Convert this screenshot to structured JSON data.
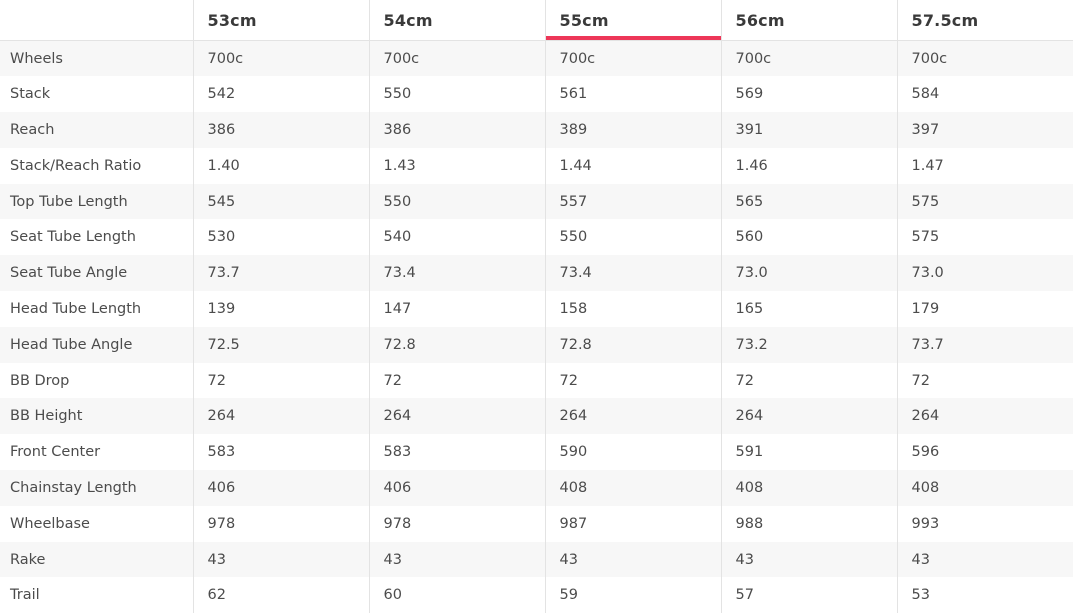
{
  "table": {
    "corner_label": "",
    "columns": [
      "53cm",
      "54cm",
      "55cm",
      "56cm",
      "57.5cm"
    ],
    "active_column_index": 2,
    "rows": [
      {
        "label": "Wheels",
        "values": [
          "700c",
          "700c",
          "700c",
          "700c",
          "700c"
        ]
      },
      {
        "label": "Stack",
        "values": [
          "542",
          "550",
          "561",
          "569",
          "584"
        ]
      },
      {
        "label": "Reach",
        "values": [
          "386",
          "386",
          "389",
          "391",
          "397"
        ]
      },
      {
        "label": "Stack/Reach Ratio",
        "values": [
          "1.40",
          "1.43",
          "1.44",
          "1.46",
          "1.47"
        ]
      },
      {
        "label": "Top Tube Length",
        "values": [
          "545",
          "550",
          "557",
          "565",
          "575"
        ]
      },
      {
        "label": "Seat Tube Length",
        "values": [
          "530",
          "540",
          "550",
          "560",
          "575"
        ]
      },
      {
        "label": "Seat Tube Angle",
        "values": [
          "73.7",
          "73.4",
          "73.4",
          "73.0",
          "73.0"
        ]
      },
      {
        "label": "Head Tube Length",
        "values": [
          "139",
          "147",
          "158",
          "165",
          "179"
        ]
      },
      {
        "label": "Head Tube Angle",
        "values": [
          "72.5",
          "72.8",
          "72.8",
          "73.2",
          "73.7"
        ]
      },
      {
        "label": "BB Drop",
        "values": [
          "72",
          "72",
          "72",
          "72",
          "72"
        ]
      },
      {
        "label": "BB Height",
        "values": [
          "264",
          "264",
          "264",
          "264",
          "264"
        ]
      },
      {
        "label": "Front Center",
        "values": [
          "583",
          "583",
          "590",
          "591",
          "596"
        ]
      },
      {
        "label": "Chainstay Length",
        "values": [
          "406",
          "406",
          "408",
          "408",
          "408"
        ]
      },
      {
        "label": "Wheelbase",
        "values": [
          "978",
          "978",
          "987",
          "988",
          "993"
        ]
      },
      {
        "label": "Rake",
        "values": [
          "43",
          "43",
          "43",
          "43",
          "43"
        ]
      },
      {
        "label": "Trail",
        "values": [
          "62",
          "60",
          "59",
          "57",
          "53"
        ]
      }
    ],
    "colors": {
      "accent": "#ed3658",
      "stripe": "#f7f7f7",
      "border": "#e3e3e3",
      "header_text": "#3a3a3a",
      "body_text": "#4c4c4c"
    }
  }
}
